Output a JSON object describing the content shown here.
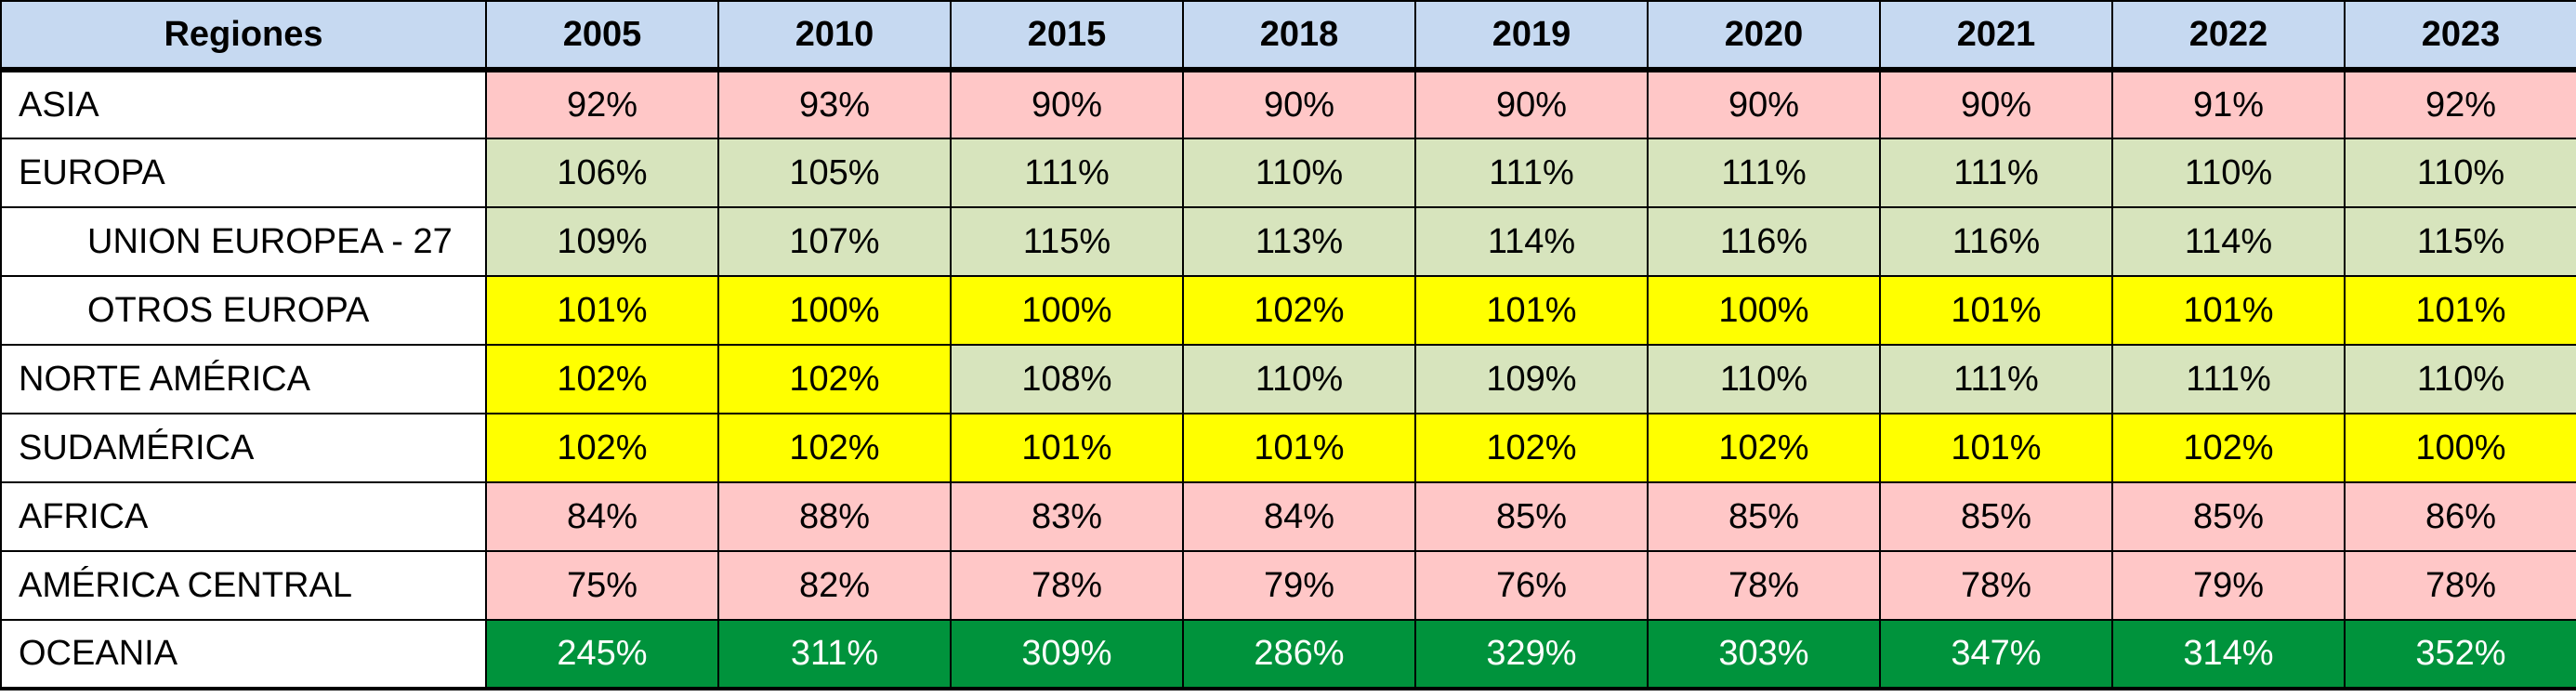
{
  "table": {
    "header_region": "Regiones",
    "years": [
      "2005",
      "2010",
      "2015",
      "2018",
      "2019",
      "2020",
      "2021",
      "2022",
      "2023"
    ],
    "rows": [
      {
        "region": "ASIA",
        "indent": false,
        "values": [
          "92%",
          "93%",
          "90%",
          "90%",
          "90%",
          "90%",
          "90%",
          "91%",
          "92%"
        ],
        "fills": [
          "pink",
          "pink",
          "pink",
          "pink",
          "pink",
          "pink",
          "pink",
          "pink",
          "pink"
        ]
      },
      {
        "region": "EUROPA",
        "indent": false,
        "values": [
          "106%",
          "105%",
          "111%",
          "110%",
          "111%",
          "111%",
          "111%",
          "110%",
          "110%"
        ],
        "fills": [
          "sage",
          "sage",
          "sage",
          "sage",
          "sage",
          "sage",
          "sage",
          "sage",
          "sage"
        ]
      },
      {
        "region": "UNION EUROPEA - 27",
        "indent": true,
        "values": [
          "109%",
          "107%",
          "115%",
          "113%",
          "114%",
          "116%",
          "116%",
          "114%",
          "115%"
        ],
        "fills": [
          "sage",
          "sage",
          "sage",
          "sage",
          "sage",
          "sage",
          "sage",
          "sage",
          "sage"
        ]
      },
      {
        "region": "OTROS EUROPA",
        "indent": true,
        "values": [
          "101%",
          "100%",
          "100%",
          "102%",
          "101%",
          "100%",
          "101%",
          "101%",
          "101%"
        ],
        "fills": [
          "yellow",
          "yellow",
          "yellow",
          "yellow",
          "yellow",
          "yellow",
          "yellow",
          "yellow",
          "yellow"
        ]
      },
      {
        "region": "NORTE AMÉRICA",
        "indent": false,
        "values": [
          "102%",
          "102%",
          "108%",
          "110%",
          "109%",
          "110%",
          "111%",
          "111%",
          "110%"
        ],
        "fills": [
          "yellow",
          "yellow",
          "sage",
          "sage",
          "sage",
          "sage",
          "sage",
          "sage",
          "sage"
        ]
      },
      {
        "region": "SUDAMÉRICA",
        "indent": false,
        "values": [
          "102%",
          "102%",
          "101%",
          "101%",
          "102%",
          "102%",
          "101%",
          "102%",
          "100%"
        ],
        "fills": [
          "yellow",
          "yellow",
          "yellow",
          "yellow",
          "yellow",
          "yellow",
          "yellow",
          "yellow",
          "yellow"
        ]
      },
      {
        "region": "AFRICA",
        "indent": false,
        "values": [
          "84%",
          "88%",
          "83%",
          "84%",
          "85%",
          "85%",
          "85%",
          "85%",
          "86%"
        ],
        "fills": [
          "pink",
          "pink",
          "pink",
          "pink",
          "pink",
          "pink",
          "pink",
          "pink",
          "pink"
        ]
      },
      {
        "region": "AMÉRICA CENTRAL",
        "indent": false,
        "values": [
          "75%",
          "82%",
          "78%",
          "79%",
          "76%",
          "78%",
          "78%",
          "79%",
          "78%"
        ],
        "fills": [
          "pink",
          "pink",
          "pink",
          "pink",
          "pink",
          "pink",
          "pink",
          "pink",
          "pink"
        ]
      },
      {
        "region": "OCEANIA",
        "indent": false,
        "values": [
          "245%",
          "311%",
          "309%",
          "286%",
          "329%",
          "303%",
          "347%",
          "314%",
          "352%"
        ],
        "fills": [
          "green",
          "green",
          "green",
          "green",
          "green",
          "green",
          "green",
          "green",
          "green"
        ]
      }
    ]
  },
  "colors": {
    "header_bg": "#c6d9f1",
    "pink": "#ffc7c7",
    "sage": "#d7e4bd",
    "yellow": "#ffff00",
    "green": "#00933c"
  }
}
